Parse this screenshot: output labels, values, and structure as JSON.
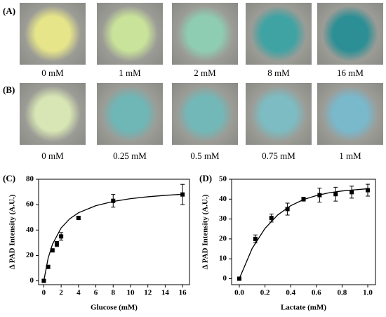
{
  "panel_a": {
    "label": "(A)",
    "captions": [
      "0 mM",
      "1 mM",
      "2 mM",
      "8 mM",
      "16 mM"
    ]
  },
  "panel_b": {
    "label": "(B)",
    "captions": [
      "0 mM",
      "0.25 mM",
      "0.5 mM",
      "0.75 mM",
      "1 mM"
    ]
  },
  "chart_data": [
    {
      "type": "scatter",
      "panel_label": "(C)",
      "xlabel": "Glucose (mM)",
      "ylabel": "Δ PAD Intensity (A.U.)",
      "color": "#000000",
      "x": [
        0,
        0.5,
        1,
        1.5,
        2,
        4,
        8,
        16
      ],
      "values": [
        0,
        11,
        24,
        29,
        35,
        49.5,
        63,
        68
      ],
      "errors": [
        1,
        1,
        1,
        2,
        3,
        1,
        5,
        8
      ],
      "fit": {
        "x": [
          0,
          0.5,
          1,
          2,
          3,
          4,
          6,
          8,
          10,
          12,
          14,
          16
        ],
        "values": [
          0,
          17.9,
          28.8,
          41.7,
          48.9,
          53.6,
          59.2,
          62.5,
          64.7,
          66.2,
          67.3,
          68.2
        ]
      },
      "xlim": [
        -0.6,
        16.8
      ],
      "ylim": [
        -3,
        80
      ],
      "xticks": [
        0,
        2,
        4,
        6,
        8,
        10,
        12,
        14,
        16
      ],
      "yticks": [
        0,
        20,
        40,
        60,
        80
      ]
    },
    {
      "type": "scatter",
      "panel_label": "(D)",
      "xlabel": "Lactate (mM)",
      "ylabel": "Δ PAD Intensity (A.U.)",
      "color": "#000000",
      "x": [
        0,
        0.125,
        0.25,
        0.375,
        0.5,
        0.625,
        0.75,
        0.875,
        1
      ],
      "values": [
        0,
        20,
        30.5,
        35,
        40,
        42,
        42.5,
        43.5,
        44.5
      ],
      "errors": [
        0,
        2,
        2,
        3,
        1,
        3.5,
        3.5,
        3,
        3
      ],
      "fit": {
        "x": [
          0,
          0.1,
          0.2,
          0.3,
          0.4,
          0.5,
          0.6,
          0.7,
          0.8,
          0.9,
          1
        ],
        "values": [
          0,
          15.2,
          25.3,
          32.1,
          36.7,
          39.8,
          41.8,
          43.2,
          44.1,
          44.7,
          45.2
        ]
      },
      "xlim": [
        -0.06,
        1.06
      ],
      "ylim": [
        -3,
        50
      ],
      "xticks": [
        {
          "value": 0,
          "label": "0.0"
        },
        0.2,
        0.4,
        0.6,
        0.8,
        {
          "value": 1,
          "label": "1.0"
        }
      ],
      "yticks": [
        0,
        10,
        20,
        30,
        40,
        50
      ]
    }
  ]
}
